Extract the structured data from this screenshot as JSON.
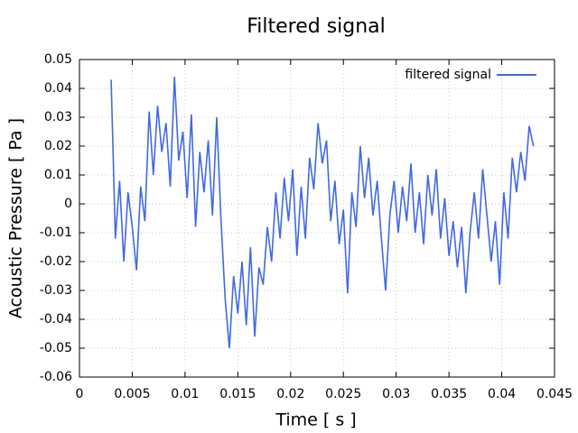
{
  "chart_data": {
    "type": "line",
    "title": "Filtered signal",
    "x_label": "Time [ s ]",
    "y_label": "Acoustic Pressure [ Pa ]",
    "x": [
      0.003,
      0.0034,
      0.0038,
      0.0042,
      0.0046,
      0.005,
      0.0054,
      0.0058,
      0.0062,
      0.0066,
      0.007,
      0.0074,
      0.0078,
      0.0082,
      0.0086,
      0.009,
      0.0094,
      0.0098,
      0.0102,
      0.0106,
      0.011,
      0.0114,
      0.0118,
      0.0122,
      0.0126,
      0.013,
      0.0134,
      0.0138,
      0.0142,
      0.0146,
      0.015,
      0.0154,
      0.0158,
      0.0162,
      0.0166,
      0.017,
      0.0174,
      0.0178,
      0.0182,
      0.0186,
      0.019,
      0.0194,
      0.0198,
      0.0202,
      0.0206,
      0.021,
      0.0214,
      0.0218,
      0.0222,
      0.0226,
      0.023,
      0.0234,
      0.0238,
      0.0242,
      0.0246,
      0.025,
      0.0254,
      0.0258,
      0.0262,
      0.0266,
      0.027,
      0.0274,
      0.0278,
      0.0282,
      0.0286,
      0.029,
      0.0294,
      0.0298,
      0.0302,
      0.0306,
      0.031,
      0.0314,
      0.0318,
      0.0322,
      0.0326,
      0.033,
      0.0334,
      0.0338,
      0.0342,
      0.0346,
      0.035,
      0.0354,
      0.0358,
      0.0362,
      0.0366,
      0.037,
      0.0374,
      0.0378,
      0.0382,
      0.0386,
      0.039,
      0.0394,
      0.0398,
      0.0402,
      0.0406,
      0.041,
      0.0414,
      0.0418,
      0.0422,
      0.0426,
      0.043
    ],
    "series": [
      {
        "name": "filtered signal",
        "color": "#4169e1",
        "values": [
          0.043,
          -0.012,
          0.008,
          -0.02,
          0.004,
          -0.008,
          -0.023,
          0.006,
          -0.006,
          0.032,
          0.01,
          0.034,
          0.018,
          0.028,
          0.006,
          0.044,
          0.015,
          0.025,
          0.002,
          0.031,
          -0.008,
          0.018,
          0.004,
          0.022,
          -0.004,
          0.03,
          -0.005,
          -0.033,
          -0.05,
          -0.025,
          -0.038,
          -0.02,
          -0.042,
          -0.015,
          -0.046,
          -0.022,
          -0.028,
          -0.008,
          -0.02,
          0.004,
          -0.012,
          0.009,
          -0.006,
          0.012,
          -0.018,
          0.006,
          -0.012,
          0.016,
          0.005,
          0.028,
          0.014,
          0.022,
          -0.006,
          0.008,
          -0.014,
          -0.002,
          -0.031,
          0.004,
          -0.008,
          0.02,
          0.002,
          0.016,
          -0.004,
          0.008,
          -0.012,
          -0.03,
          -0.004,
          0.008,
          -0.01,
          0.006,
          -0.006,
          0.014,
          -0.01,
          0.004,
          -0.014,
          0.01,
          -0.004,
          0.012,
          -0.012,
          0.002,
          -0.018,
          -0.006,
          -0.022,
          -0.008,
          -0.031,
          -0.01,
          0.004,
          -0.012,
          0.012,
          -0.004,
          -0.02,
          -0.006,
          -0.028,
          0.004,
          -0.012,
          0.016,
          0.004,
          0.018,
          0.008,
          0.027,
          0.02
        ]
      }
    ],
    "xlim": [
      0,
      0.045
    ],
    "ylim": [
      -0.06,
      0.05
    ],
    "xticks": [
      0,
      0.005,
      0.01,
      0.015,
      0.02,
      0.025,
      0.03,
      0.035,
      0.04,
      0.045
    ],
    "yticks": [
      -0.06,
      -0.05,
      -0.04,
      -0.03,
      -0.02,
      -0.01,
      0,
      0.01,
      0.02,
      0.03,
      0.04,
      0.05
    ],
    "grid": true,
    "legend": "top-right"
  }
}
